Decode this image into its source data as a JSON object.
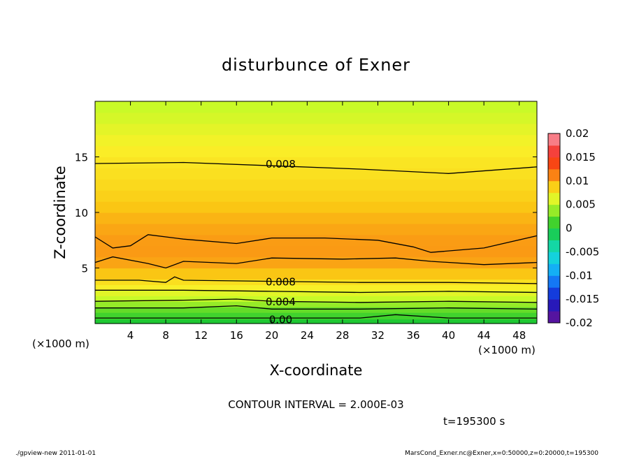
{
  "chart_data": {
    "type": "heatmap",
    "title": "disturbunce of Exner",
    "xlabel": "X-coordinate",
    "ylabel": "Z-coordinate",
    "x_unit_left": "(×1000 m)",
    "x_unit_right": "(×1000 m)",
    "xlim": [
      0,
      50
    ],
    "ylim": [
      0,
      20
    ],
    "x_ticks": [
      4,
      8,
      12,
      16,
      20,
      24,
      28,
      32,
      36,
      40,
      44,
      48
    ],
    "y_ticks": [
      5,
      10,
      15
    ],
    "colorbar": {
      "min": -0.02,
      "max": 0.02,
      "tick_labels": [
        "0.02",
        "0.015",
        "0.01",
        "0.005",
        "0",
        "-0.005",
        "-0.01",
        "-0.015",
        "-0.02"
      ],
      "tick_values": [
        0.02,
        0.015,
        0.01,
        0.005,
        0,
        -0.005,
        -0.01,
        -0.015,
        -0.02
      ]
    },
    "contour_interval": "CONTOUR INTERVAL = 2.000E-03",
    "contour_labels": [
      {
        "text": "0.008",
        "x": 21,
        "y": 14.4
      },
      {
        "text": "0.008",
        "x": 21,
        "y": 3.8
      },
      {
        "text": "0.004",
        "x": 21,
        "y": 2.0
      },
      {
        "text": "0.00",
        "x": 21,
        "y": 0.4
      }
    ],
    "profile": {
      "z": [
        0,
        0.4,
        1.0,
        1.5,
        2.0,
        2.5,
        3.0,
        3.5,
        4.0,
        5.0,
        6.0,
        7.0,
        8.0,
        9.0,
        10.0,
        11.0,
        12.0,
        13.0,
        14.0,
        15.0,
        16.0,
        17.0,
        18.0,
        19.0,
        20.0
      ],
      "value": [
        -0.0005,
        0.0005,
        0.002,
        0.003,
        0.0045,
        0.0055,
        0.007,
        0.0078,
        0.0085,
        0.0096,
        0.0102,
        0.0103,
        0.01,
        0.0097,
        0.0093,
        0.0088,
        0.0085,
        0.0082,
        0.008,
        0.0078,
        0.0074,
        0.0068,
        0.006,
        0.0053,
        0.0048
      ]
    },
    "contour_lines": [
      {
        "x": [
          0,
          10,
          20,
          30,
          40,
          50
        ],
        "y": [
          14.4,
          14.5,
          14.2,
          13.9,
          13.5,
          14.1
        ]
      },
      {
        "x": [
          0,
          2,
          4,
          6,
          10,
          16,
          20,
          26,
          32,
          36,
          38,
          44,
          50
        ],
        "y": [
          7.8,
          6.8,
          7.0,
          8.0,
          7.6,
          7.2,
          7.7,
          7.7,
          7.5,
          6.9,
          6.4,
          6.8,
          7.9
        ]
      },
      {
        "x": [
          0,
          2,
          6,
          8,
          10,
          16,
          20,
          28,
          34,
          38,
          44,
          50
        ],
        "y": [
          5.5,
          6.0,
          5.4,
          5.0,
          5.6,
          5.4,
          5.9,
          5.8,
          5.9,
          5.6,
          5.3,
          5.5
        ]
      },
      {
        "x": [
          0,
          5,
          8,
          9,
          10,
          20,
          30,
          40,
          50
        ],
        "y": [
          3.9,
          3.9,
          3.7,
          4.2,
          3.9,
          3.8,
          3.7,
          3.7,
          3.6
        ]
      },
      {
        "x": [
          0,
          10,
          20,
          30,
          40,
          50
        ],
        "y": [
          3.0,
          3.0,
          2.9,
          2.8,
          2.9,
          2.8
        ]
      },
      {
        "x": [
          0,
          10,
          16,
          20,
          30,
          40,
          50
        ],
        "y": [
          2.0,
          2.1,
          2.2,
          2.0,
          1.9,
          2.0,
          1.9
        ]
      },
      {
        "x": [
          0,
          10,
          16,
          20,
          30,
          40,
          50
        ],
        "y": [
          1.4,
          1.4,
          1.6,
          1.3,
          1.3,
          1.4,
          1.3
        ]
      },
      {
        "x": [
          0,
          10,
          20,
          30,
          34,
          40,
          50
        ],
        "y": [
          0.5,
          0.5,
          0.5,
          0.5,
          0.8,
          0.5,
          0.5
        ]
      }
    ]
  },
  "annotations": {
    "time": "t=195300 s",
    "footer_left": "./gpview-new   2011-01-01",
    "footer_right": "MarsCond_Exner.nc@Exner,x=0:50000,z=0:20000,t=195300"
  }
}
